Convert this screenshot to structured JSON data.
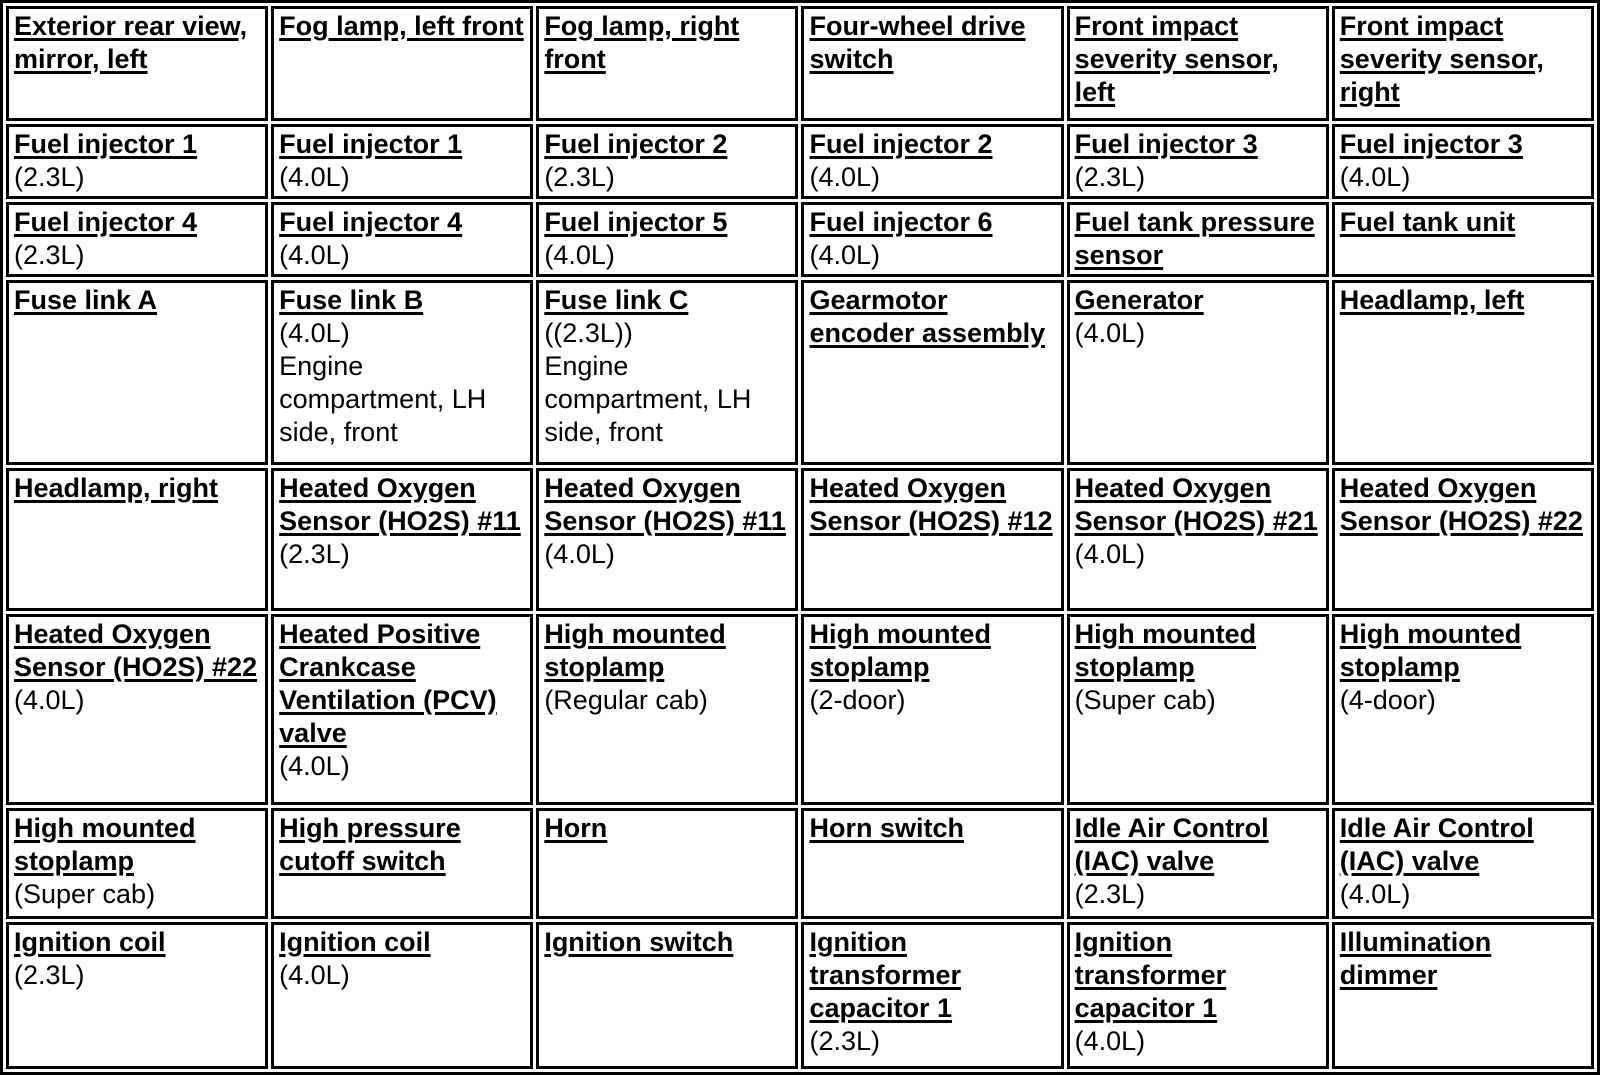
{
  "colors": {
    "text": "#000000",
    "background": "#ffffff",
    "border": "#000000"
  },
  "table": {
    "columns": 6,
    "rows": [
      [
        {
          "link": "Exterior rear view, mirror, left",
          "plain": ""
        },
        {
          "link": "Fog lamp, left front",
          "plain": ""
        },
        {
          "link": "Fog lamp, right front",
          "plain": ""
        },
        {
          "link": "Four-wheel drive switch",
          "plain": ""
        },
        {
          "link": "Front impact severity sensor, left",
          "plain": ""
        },
        {
          "link": "Front impact severity sensor, right",
          "plain": ""
        }
      ],
      [
        {
          "link": "Fuel injector 1",
          "plain": "(2.3L)"
        },
        {
          "link": "Fuel injector 1",
          "plain": "(4.0L)"
        },
        {
          "link": "Fuel injector 2",
          "plain": "(2.3L)"
        },
        {
          "link": "Fuel injector 2",
          "plain": "(4.0L)"
        },
        {
          "link": "Fuel injector 3",
          "plain": "(2.3L)"
        },
        {
          "link": "Fuel injector 3",
          "plain": "(4.0L)"
        }
      ],
      [
        {
          "link": "Fuel injector 4",
          "plain": "(2.3L)"
        },
        {
          "link": "Fuel injector 4",
          "plain": "(4.0L)"
        },
        {
          "link": "Fuel injector 5",
          "plain": "(4.0L)"
        },
        {
          "link": "Fuel injector 6",
          "plain": "(4.0L)"
        },
        {
          "link": "Fuel tank pressure sensor",
          "plain": ""
        },
        {
          "link": "Fuel tank unit",
          "plain": ""
        }
      ],
      [
        {
          "link": "Fuse link A",
          "plain": ""
        },
        {
          "link": "Fuse link B",
          "plain": "(4.0L)\nEngine compartment, LH side, front"
        },
        {
          "link": "Fuse link C",
          "plain": "((2.3L))\nEngine compartment, LH side, front"
        },
        {
          "link": "Gearmotor encoder assembly",
          "plain": ""
        },
        {
          "link": "Generator",
          "plain": "(4.0L)"
        },
        {
          "link": "Headlamp, left",
          "plain": ""
        }
      ],
      [
        {
          "link": "Headlamp, right",
          "plain": ""
        },
        {
          "link": "Heated Oxygen Sensor (HO2S) #11",
          "plain": "(2.3L)"
        },
        {
          "link": "Heated Oxygen Sensor (HO2S) #11",
          "plain": "(4.0L)"
        },
        {
          "link": "Heated Oxygen Sensor (HO2S) #12",
          "plain": ""
        },
        {
          "link": "Heated Oxygen Sensor (HO2S) #21",
          "plain": "(4.0L)"
        },
        {
          "link": "Heated Oxygen Sensor (HO2S) #22",
          "plain": ""
        }
      ],
      [
        {
          "link": "Heated Oxygen Sensor (HO2S) #22",
          "plain": "(4.0L)"
        },
        {
          "link": "Heated Positive Crankcase Ventilation (PCV) valve",
          "plain": "(4.0L)"
        },
        {
          "link": "High mounted stoplamp",
          "plain": "(Regular cab)"
        },
        {
          "link": "High mounted stoplamp",
          "plain": "(2-door)"
        },
        {
          "link": "High mounted stoplamp",
          "plain": "(Super cab)"
        },
        {
          "link": "High mounted stoplamp",
          "plain": "(4-door)"
        }
      ],
      [
        {
          "link": "High mounted stoplamp",
          "plain": "(Super cab)"
        },
        {
          "link": "High pressure cutoff switch",
          "plain": ""
        },
        {
          "link": "Horn",
          "plain": ""
        },
        {
          "link": "Horn switch",
          "plain": ""
        },
        {
          "link": "Idle Air Control (IAC) valve",
          "plain": "(2.3L)"
        },
        {
          "link": "Idle Air Control (IAC) valve",
          "plain": "(4.0L)"
        }
      ],
      [
        {
          "link": "Ignition coil",
          "plain": "(2.3L)"
        },
        {
          "link": "Ignition coil",
          "plain": "(4.0L)"
        },
        {
          "link": "Ignition switch",
          "plain": ""
        },
        {
          "link": "Ignition transformer capacitor 1",
          "plain": "(2.3L)"
        },
        {
          "link": "Ignition transformer capacitor 1",
          "plain": "(4.0L)"
        },
        {
          "link": "Illumination dimmer",
          "plain": ""
        }
      ]
    ]
  }
}
